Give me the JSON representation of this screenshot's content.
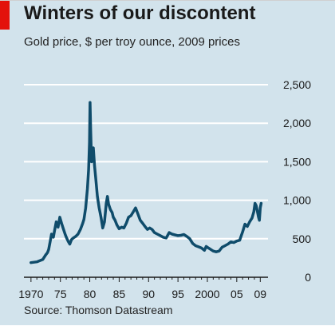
{
  "chart_data": {
    "type": "line",
    "title": "Winters of our discontent",
    "subtitle": "Gold price, $ per troy ounce, 2009 prices",
    "source": "Source: Thomson Datastream",
    "xlabel": "",
    "ylabel": "",
    "xlim": [
      1968.8,
      2009.5
    ],
    "ylim": [
      0,
      2500
    ],
    "grid": true,
    "y_axis_side": "right",
    "x_ticks": [
      {
        "value": 1970,
        "label": "1970"
      },
      {
        "value": 1975,
        "label": "75"
      },
      {
        "value": 1980,
        "label": "80"
      },
      {
        "value": 1985,
        "label": "85"
      },
      {
        "value": 1990,
        "label": "90"
      },
      {
        "value": 1995,
        "label": "95"
      },
      {
        "value": 2000,
        "label": "2000"
      },
      {
        "value": 2005,
        "label": "05"
      },
      {
        "value": 2009,
        "label": "09"
      }
    ],
    "y_ticks": [
      {
        "value": 0,
        "label": "0"
      },
      {
        "value": 500,
        "label": "500"
      },
      {
        "value": 1000,
        "label": "1,000"
      },
      {
        "value": 1500,
        "label": "1,500"
      },
      {
        "value": 2000,
        "label": "2,000"
      },
      {
        "value": 2500,
        "label": "2,500"
      }
    ],
    "series": [
      {
        "color": "#0f4c6b",
        "points": [
          [
            1970.0,
            190
          ],
          [
            1970.5,
            195
          ],
          [
            1971.0,
            200
          ],
          [
            1971.5,
            215
          ],
          [
            1972.0,
            230
          ],
          [
            1972.5,
            290
          ],
          [
            1972.8,
            320
          ],
          [
            1973.0,
            360
          ],
          [
            1973.3,
            480
          ],
          [
            1973.5,
            560
          ],
          [
            1973.8,
            520
          ],
          [
            1974.0,
            600
          ],
          [
            1974.3,
            720
          ],
          [
            1974.6,
            650
          ],
          [
            1974.9,
            780
          ],
          [
            1975.2,
            700
          ],
          [
            1975.5,
            630
          ],
          [
            1975.8,
            560
          ],
          [
            1976.0,
            520
          ],
          [
            1976.3,
            470
          ],
          [
            1976.6,
            430
          ],
          [
            1976.9,
            490
          ],
          [
            1977.2,
            510
          ],
          [
            1977.6,
            530
          ],
          [
            1978.0,
            560
          ],
          [
            1978.4,
            620
          ],
          [
            1978.8,
            700
          ],
          [
            1979.0,
            750
          ],
          [
            1979.3,
            900
          ],
          [
            1979.6,
            1150
          ],
          [
            1979.8,
            1400
          ],
          [
            1979.95,
            1750
          ],
          [
            1980.05,
            2270
          ],
          [
            1980.15,
            1900
          ],
          [
            1980.3,
            1500
          ],
          [
            1980.45,
            1650
          ],
          [
            1980.6,
            1680
          ],
          [
            1980.8,
            1450
          ],
          [
            1981.0,
            1300
          ],
          [
            1981.3,
            1050
          ],
          [
            1981.6,
            900
          ],
          [
            1981.9,
            780
          ],
          [
            1982.2,
            640
          ],
          [
            1982.5,
            720
          ],
          [
            1982.8,
            960
          ],
          [
            1983.0,
            1050
          ],
          [
            1983.2,
            950
          ],
          [
            1983.5,
            880
          ],
          [
            1983.8,
            840
          ],
          [
            1984.0,
            780
          ],
          [
            1984.3,
            740
          ],
          [
            1984.6,
            680
          ],
          [
            1985.0,
            630
          ],
          [
            1985.4,
            650
          ],
          [
            1985.8,
            640
          ],
          [
            1986.2,
            700
          ],
          [
            1986.6,
            780
          ],
          [
            1987.0,
            800
          ],
          [
            1987.4,
            850
          ],
          [
            1987.8,
            900
          ],
          [
            1988.2,
            820
          ],
          [
            1988.6,
            740
          ],
          [
            1989.0,
            700
          ],
          [
            1989.4,
            660
          ],
          [
            1989.8,
            620
          ],
          [
            1990.2,
            640
          ],
          [
            1990.6,
            620
          ],
          [
            1991.0,
            580
          ],
          [
            1991.5,
            560
          ],
          [
            1992.0,
            540
          ],
          [
            1992.5,
            520
          ],
          [
            1993.0,
            510
          ],
          [
            1993.5,
            580
          ],
          [
            1994.0,
            560
          ],
          [
            1994.5,
            550
          ],
          [
            1995.0,
            540
          ],
          [
            1995.5,
            545
          ],
          [
            1996.0,
            555
          ],
          [
            1996.5,
            530
          ],
          [
            1997.0,
            500
          ],
          [
            1997.5,
            440
          ],
          [
            1998.0,
            410
          ],
          [
            1998.5,
            395
          ],
          [
            1999.0,
            380
          ],
          [
            1999.5,
            350
          ],
          [
            1999.8,
            400
          ],
          [
            2000.2,
            380
          ],
          [
            2000.6,
            360
          ],
          [
            2001.0,
            340
          ],
          [
            2001.5,
            330
          ],
          [
            2002.0,
            340
          ],
          [
            2002.5,
            390
          ],
          [
            2003.0,
            410
          ],
          [
            2003.5,
            430
          ],
          [
            2004.0,
            460
          ],
          [
            2004.5,
            450
          ],
          [
            2005.0,
            470
          ],
          [
            2005.5,
            480
          ],
          [
            2006.0,
            590
          ],
          [
            2006.4,
            690
          ],
          [
            2006.8,
            660
          ],
          [
            2007.2,
            720
          ],
          [
            2007.6,
            770
          ],
          [
            2007.9,
            850
          ],
          [
            2008.1,
            960
          ],
          [
            2008.3,
            930
          ],
          [
            2008.5,
            860
          ],
          [
            2008.7,
            780
          ],
          [
            2008.85,
            740
          ],
          [
            2009.0,
            900
          ],
          [
            2009.15,
            960
          ]
        ]
      }
    ]
  }
}
